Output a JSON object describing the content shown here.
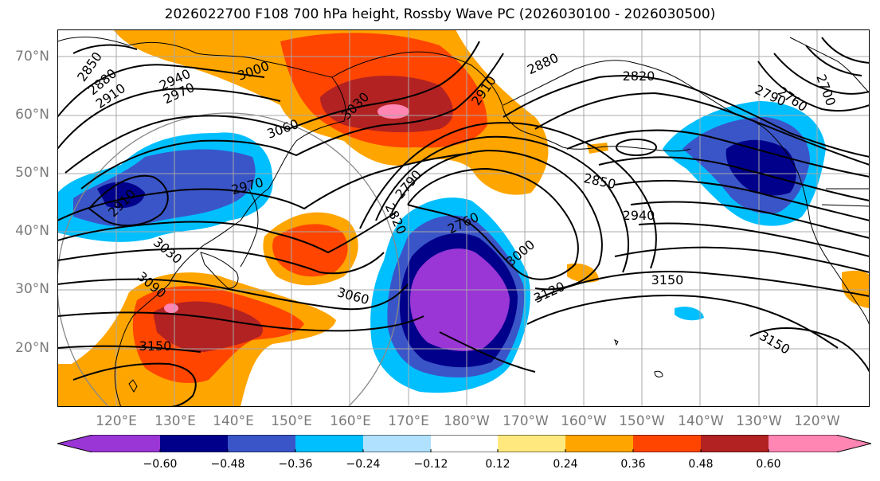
{
  "title": "2026022700 F108 700 hPa height, Rossby Wave PC (2026030100 - 2026030500)",
  "lat_labels": [
    "70°N",
    "60°N",
    "50°N",
    "40°N",
    "30°N",
    "20°N"
  ],
  "lon_labels": [
    "120°E",
    "130°E",
    "140°E",
    "150°E",
    "160°E",
    "170°E",
    "180°W",
    "170°W",
    "160°W",
    "150°W",
    "140°W",
    "130°W",
    "120°W"
  ],
  "contour_labels": [
    "2850",
    "2880",
    "2910",
    "2940",
    "2970",
    "3000",
    "3060",
    "3030",
    "2910",
    "2880",
    "2820",
    "2790",
    "2760",
    "2700",
    "2970",
    "2910",
    "2790",
    "2820",
    "2850",
    "2940",
    "2760",
    "3000",
    "3120",
    "3150",
    "3030",
    "3090",
    "3060",
    "3150",
    "3150"
  ],
  "colorbar": {
    "ticks": [
      "−0.60",
      "−0.48",
      "−0.36",
      "−0.24",
      "−0.12",
      "0.12",
      "0.24",
      "0.36",
      "0.48",
      "0.60"
    ],
    "colors": [
      "#9a35d6",
      "#00008b",
      "#3a55c8",
      "#00bfff",
      "#b0e2ff",
      "#ffffff",
      "#ffe97f",
      "#ffa500",
      "#ff4500",
      "#b22222",
      "#ff85b3",
      "#ff85b3"
    ]
  },
  "colors": {
    "coast": "#000000",
    "grid": "#a0a0a0",
    "label": "#7a7a7a"
  }
}
